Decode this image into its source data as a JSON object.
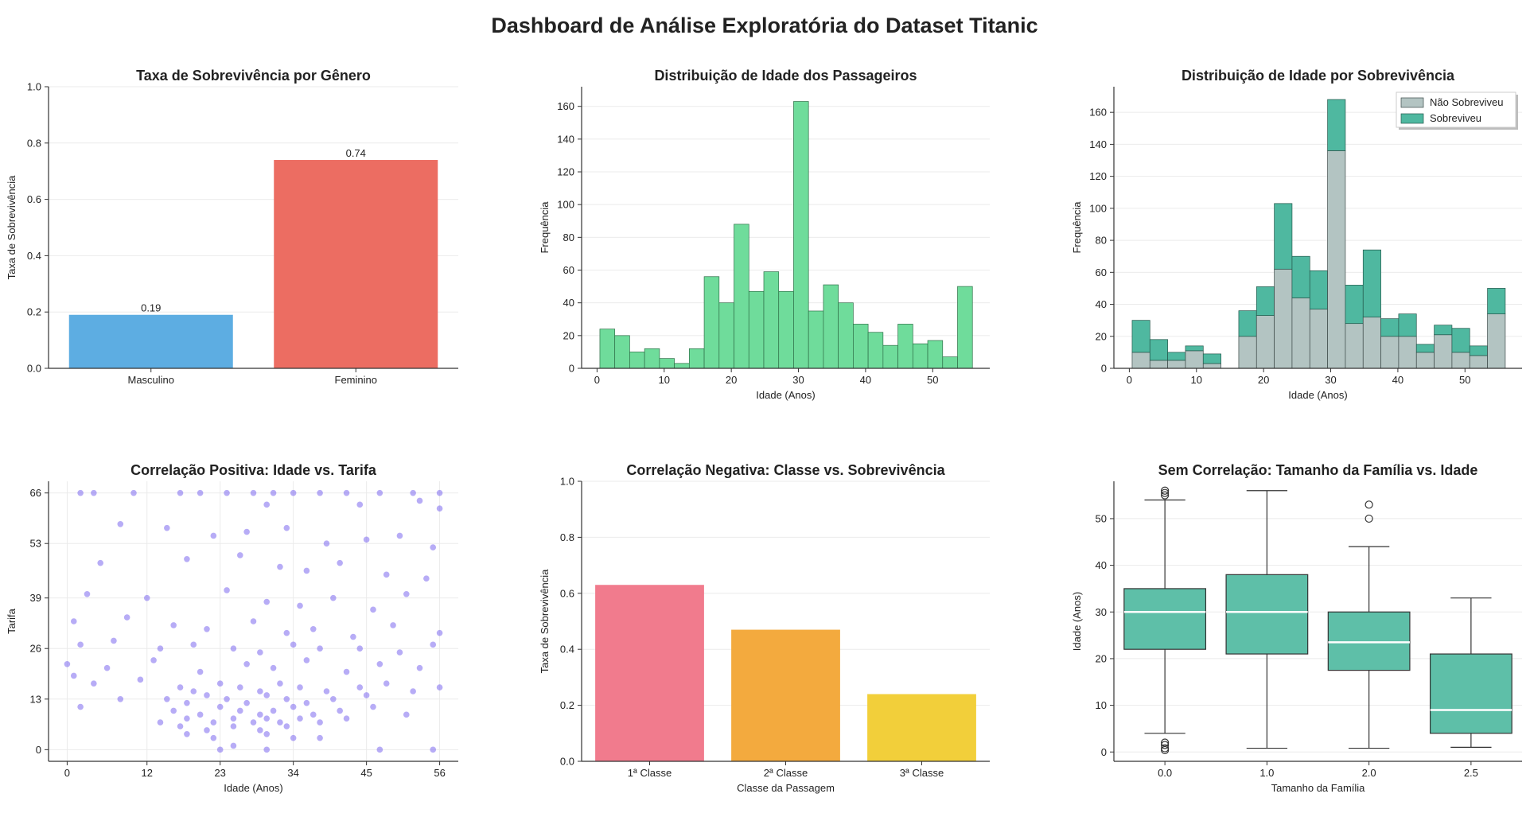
{
  "title": "Dashboard de Análise Exploratória do Dataset Titanic",
  "colors": {
    "male": "#5dade2",
    "female": "#ec6d62",
    "histogram": "#6fdc9b",
    "not_survived": "#b3c4c2",
    "survived": "#4fb8a0",
    "scatter": "#7b68ee",
    "class1": "#f17b8d",
    "class2": "#f3aa3e",
    "class3": "#f2cf3a",
    "box": "#5ebfa8"
  },
  "chart_data": [
    {
      "type": "bar",
      "title": "Taxa de Sobrevivência por Gênero",
      "xlabel": "",
      "ylabel": "Taxa de Sobrevivência",
      "categories": [
        "Masculino",
        "Feminino"
      ],
      "values": [
        0.19,
        0.74
      ],
      "value_labels": [
        "0.19",
        "0.74"
      ],
      "ylim": [
        0,
        1.0
      ],
      "yticks": [
        "0.0",
        "0.2",
        "0.4",
        "0.6",
        "0.8",
        "1.0"
      ],
      "grid": true
    },
    {
      "type": "bar",
      "title": "Distribuição de Idade dos Passageiros",
      "xlabel": "Idade (Anos)",
      "ylabel": "Frequência",
      "bin_start": 0.42,
      "bin_width": 2.22,
      "values": [
        24,
        20,
        10,
        12,
        6,
        3,
        12,
        56,
        40,
        88,
        47,
        59,
        47,
        163,
        35,
        51,
        40,
        27,
        22,
        14,
        27,
        15,
        17,
        7,
        50
      ],
      "xlim": [
        -2.3,
        58.5
      ],
      "ylim": [
        0,
        172
      ],
      "xticks": [
        "0",
        "10",
        "20",
        "30",
        "40",
        "50"
      ],
      "yticks": [
        "0",
        "20",
        "40",
        "60",
        "80",
        "100",
        "120",
        "140",
        "160"
      ],
      "grid": true
    },
    {
      "type": "bar",
      "title": "Distribuição de Idade por Sobrevivência",
      "xlabel": "Idade (Anos)",
      "ylabel": "Frequência",
      "bin_start": 0.42,
      "bin_width": 2.22,
      "series": [
        {
          "name": "Não Sobreviveu",
          "values": [
            10,
            5,
            5,
            11,
            3,
            0,
            20,
            33,
            62,
            44,
            37,
            136,
            28,
            32,
            20,
            20,
            10,
            21,
            10,
            8,
            34
          ]
        },
        {
          "name": "Sobreviveu",
          "values": [
            20,
            13,
            5,
            3,
            6,
            0,
            16,
            18,
            41,
            26,
            24,
            32,
            24,
            42,
            11,
            14,
            5,
            6,
            15,
            6,
            16
          ]
        }
      ],
      "stacked": true,
      "legend_position": "top-right",
      "xlim": [
        -2.3,
        58.5
      ],
      "ylim": [
        0,
        176
      ],
      "xticks": [
        "0",
        "10",
        "20",
        "30",
        "40",
        "50"
      ],
      "yticks": [
        "0",
        "20",
        "40",
        "60",
        "80",
        "100",
        "120",
        "140",
        "160"
      ],
      "grid": true
    },
    {
      "type": "scatter",
      "title": "Correlação Positiva: Idade vs. Tarifa",
      "xlabel": "Idade (Anos)",
      "ylabel": "Tarifa",
      "xlim": [
        -2.8,
        58.8
      ],
      "ylim": [
        -3,
        69
      ],
      "xticks": [
        0,
        12,
        23,
        34,
        45,
        56
      ],
      "yticks": [
        0,
        13,
        26,
        39,
        53,
        66
      ],
      "x": [
        2,
        4,
        17,
        20,
        24,
        28,
        31,
        34,
        38,
        42,
        47,
        52,
        56,
        10,
        30,
        44,
        53,
        56,
        8,
        15,
        22,
        27,
        33,
        39,
        45,
        50,
        55,
        5,
        18,
        26,
        32,
        36,
        41,
        48,
        54,
        3,
        12,
        24,
        30,
        35,
        40,
        46,
        51,
        1,
        9,
        16,
        21,
        28,
        33,
        37,
        43,
        49,
        56,
        2,
        7,
        14,
        19,
        25,
        29,
        34,
        38,
        44,
        50,
        55,
        0,
        6,
        13,
        20,
        27,
        31,
        36,
        42,
        47,
        53,
        1,
        4,
        11,
        17,
        19,
        23,
        26,
        29,
        32,
        35,
        39,
        44,
        48,
        52,
        56,
        15,
        18,
        21,
        24,
        27,
        30,
        33,
        36,
        40,
        45,
        16,
        20,
        23,
        26,
        29,
        31,
        34,
        37,
        41,
        46,
        51,
        18,
        22,
        25,
        28,
        30,
        32,
        35,
        38,
        42,
        17,
        21,
        25,
        29,
        33,
        18,
        22,
        30,
        34,
        38,
        23,
        30,
        2,
        8,
        14,
        25,
        47,
        55
      ],
      "y": [
        66,
        66,
        66,
        66,
        66,
        66,
        66,
        66,
        66,
        66,
        66,
        66,
        66,
        66,
        63,
        63,
        64,
        62,
        58,
        57,
        55,
        56,
        57,
        53,
        54,
        55,
        52,
        48,
        49,
        50,
        47,
        46,
        48,
        45,
        44,
        40,
        39,
        41,
        38,
        37,
        39,
        36,
        40,
        33,
        34,
        32,
        31,
        33,
        30,
        31,
        29,
        32,
        30,
        27,
        28,
        26,
        27,
        26,
        25,
        27,
        26,
        26,
        25,
        27,
        22,
        21,
        23,
        20,
        22,
        21,
        23,
        20,
        22,
        21,
        19,
        17,
        18,
        16,
        15,
        17,
        16,
        15,
        17,
        16,
        15,
        16,
        17,
        15,
        16,
        13,
        12,
        14,
        13,
        12,
        14,
        13,
        12,
        13,
        14,
        10,
        9,
        11,
        10,
        9,
        10,
        11,
        9,
        10,
        11,
        9,
        8,
        7,
        8,
        7,
        8,
        7,
        8,
        7,
        8,
        6,
        5,
        6,
        5,
        6,
        4,
        3,
        4,
        3,
        3,
        0,
        0,
        11,
        13,
        7,
        1,
        0,
        0
      ],
      "grid": true
    },
    {
      "type": "bar",
      "title": "Correlação Negativa: Classe vs. Sobrevivência",
      "xlabel": "Classe da Passagem",
      "ylabel": "Taxa de Sobrevivência",
      "categories": [
        "1ª Classe",
        "2ª Classe",
        "3ª Classe"
      ],
      "values": [
        0.63,
        0.47,
        0.24
      ],
      "ylim": [
        0,
        1.0
      ],
      "yticks": [
        "0.0",
        "0.2",
        "0.4",
        "0.6",
        "0.8",
        "1.0"
      ],
      "grid": true
    },
    {
      "type": "box",
      "title": "Sem Correlação: Tamanho da Família vs. Idade",
      "xlabel": "Tamanho da Família",
      "ylabel": "Idade (Anos)",
      "categories": [
        "0.0",
        "1.0",
        "2.0",
        "2.5"
      ],
      "boxes": [
        {
          "min": 4,
          "q1": 22,
          "median": 30,
          "q3": 35,
          "max": 54,
          "outliers": [
            0.4,
            0.8,
            1.5,
            2.0,
            55,
            55.5,
            56
          ]
        },
        {
          "min": 0.8,
          "q1": 21,
          "median": 30,
          "q3": 38,
          "max": 56,
          "outliers": []
        },
        {
          "min": 0.8,
          "q1": 17.5,
          "median": 23.5,
          "q3": 30,
          "max": 44,
          "outliers": [
            50,
            53
          ]
        },
        {
          "min": 1,
          "q1": 4,
          "median": 9,
          "q3": 21,
          "max": 33,
          "outliers": []
        }
      ],
      "ylim": [
        -2,
        58
      ],
      "yticks": [
        "0",
        "10",
        "20",
        "30",
        "40",
        "50"
      ],
      "grid": true
    }
  ]
}
